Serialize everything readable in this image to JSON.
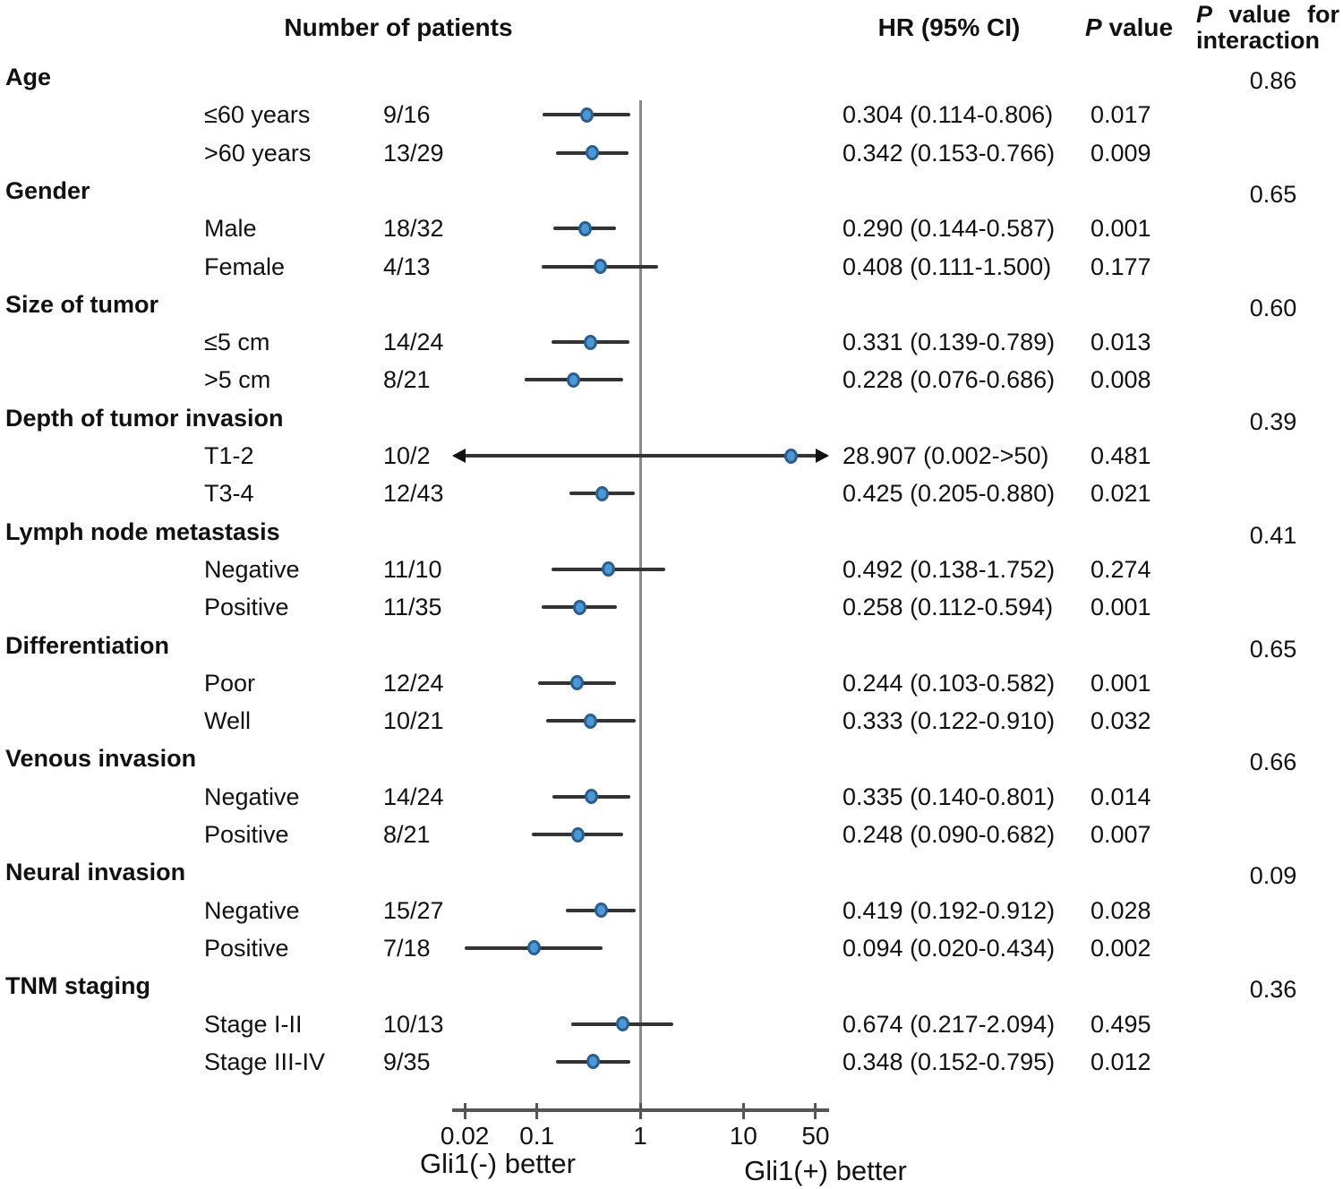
{
  "headers": {
    "patients": "Number of patients",
    "hr": "HR (95% CI)",
    "p_italic": "P",
    "p_rest": "value",
    "pi_italic": "P",
    "pi_rest1": "value",
    "pi_rest2": "for",
    "pi_line2": "interaction"
  },
  "axis": {
    "tick_values": [
      0.02,
      0.1,
      1,
      10,
      50
    ],
    "tick_labels": [
      "0.02",
      "0.1",
      "1",
      "10",
      "50"
    ],
    "reference_value": 1,
    "left_better_label": "Gli1(-) better",
    "right_better_label": "Gli1(+) better",
    "scale": "log10",
    "range": [
      0.02,
      50
    ]
  },
  "colors": {
    "marker_fill": "#4e97d5",
    "marker_border": "#2a5e91",
    "ci_line": "#333333",
    "axis": "#555555",
    "reference_line": "#8a8a8a",
    "text": "#111111",
    "background": "#ffffff"
  },
  "chart_data": {
    "type": "forest",
    "x_scale": "log10",
    "x_range": [
      0.02,
      50
    ],
    "groups": [
      {
        "label": "Age",
        "p_interaction": "0.86",
        "rows": [
          {
            "label": "≤60 years",
            "n": "9/16",
            "hr": 0.304,
            "lo": 0.114,
            "hi": 0.806,
            "hr_text": "0.304 (0.114-0.806)",
            "p": "0.017"
          },
          {
            "label": ">60 years",
            "n": "13/29",
            "hr": 0.342,
            "lo": 0.153,
            "hi": 0.766,
            "hr_text": "0.342 (0.153-0.766)",
            "p": "0.009"
          }
        ]
      },
      {
        "label": "Gender",
        "p_interaction": "0.65",
        "rows": [
          {
            "label": "Male",
            "n": "18/32",
            "hr": 0.29,
            "lo": 0.144,
            "hi": 0.587,
            "hr_text": "0.290 (0.144-0.587)",
            "p": "0.001"
          },
          {
            "label": "Female",
            "n": "4/13",
            "hr": 0.408,
            "lo": 0.111,
            "hi": 1.5,
            "hr_text": "0.408 (0.111-1.500)",
            "p": "0.177"
          }
        ]
      },
      {
        "label": "Size of tumor",
        "p_interaction": "0.60",
        "rows": [
          {
            "label": "≤5 cm",
            "n": "14/24",
            "hr": 0.331,
            "lo": 0.139,
            "hi": 0.789,
            "hr_text": "0.331 (0.139-0.789)",
            "p": "0.013"
          },
          {
            "label": ">5 cm",
            "n": "8/21",
            "hr": 0.228,
            "lo": 0.076,
            "hi": 0.686,
            "hr_text": "0.228 (0.076-0.686)",
            "p": "0.008"
          }
        ]
      },
      {
        "label": "Depth of tumor invasion",
        "p_interaction": "0.39",
        "rows": [
          {
            "label": "T1-2",
            "n": "10/2",
            "hr": 28.907,
            "lo": 0.002,
            "hi": null,
            "hi_label": ">50",
            "hr_text": "28.907 (0.002->50)",
            "p": "0.481"
          },
          {
            "label": "T3-4",
            "n": "12/43",
            "hr": 0.425,
            "lo": 0.205,
            "hi": 0.88,
            "hr_text": "0.425 (0.205-0.880)",
            "p": "0.021"
          }
        ]
      },
      {
        "label": "Lymph node metastasis",
        "p_interaction": "0.41",
        "rows": [
          {
            "label": "Negative",
            "n": "11/10",
            "hr": 0.492,
            "lo": 0.138,
            "hi": 1.752,
            "hr_text": "0.492 (0.138-1.752)",
            "p": "0.274"
          },
          {
            "label": "Positive",
            "n": "11/35",
            "hr": 0.258,
            "lo": 0.112,
            "hi": 0.594,
            "hr_text": "0.258 (0.112-0.594)",
            "p": "0.001"
          }
        ]
      },
      {
        "label": "Differentiation",
        "p_interaction": "0.65",
        "rows": [
          {
            "label": "Poor",
            "n": "12/24",
            "hr": 0.244,
            "lo": 0.103,
            "hi": 0.582,
            "hr_text": "0.244 (0.103-0.582)",
            "p": "0.001"
          },
          {
            "label": "Well",
            "n": "10/21",
            "hr": 0.333,
            "lo": 0.122,
            "hi": 0.91,
            "hr_text": "0.333 (0.122-0.910)",
            "p": "0.032"
          }
        ]
      },
      {
        "label": "Venous invasion",
        "p_interaction": "0.66",
        "rows": [
          {
            "label": "Negative",
            "n": "14/24",
            "hr": 0.335,
            "lo": 0.14,
            "hi": 0.801,
            "hr_text": "0.335 (0.140-0.801)",
            "p": "0.014"
          },
          {
            "label": "Positive",
            "n": "8/21",
            "hr": 0.248,
            "lo": 0.09,
            "hi": 0.682,
            "hr_text": "0.248 (0.090-0.682)",
            "p": "0.007"
          }
        ]
      },
      {
        "label": "Neural invasion",
        "p_interaction": "0.09",
        "rows": [
          {
            "label": "Negative",
            "n": "15/27",
            "hr": 0.419,
            "lo": 0.192,
            "hi": 0.912,
            "hr_text": "0.419 (0.192-0.912)",
            "p": "0.028"
          },
          {
            "label": "Positive",
            "n": "7/18",
            "hr": 0.094,
            "lo": 0.02,
            "hi": 0.434,
            "hr_text": "0.094 (0.020-0.434)",
            "p": "0.002"
          }
        ]
      },
      {
        "label": "TNM staging",
        "p_interaction": "0.36",
        "rows": [
          {
            "label": "Stage I-II",
            "n": "10/13",
            "hr": 0.674,
            "lo": 0.217,
            "hi": 2.094,
            "hr_text": "0.674 (0.217-2.094)",
            "p": "0.495"
          },
          {
            "label": "Stage III-IV",
            "n": "9/35",
            "hr": 0.348,
            "lo": 0.152,
            "hi": 0.795,
            "hr_text": "0.348 (0.152-0.795)",
            "p": "0.012"
          }
        ]
      }
    ]
  }
}
